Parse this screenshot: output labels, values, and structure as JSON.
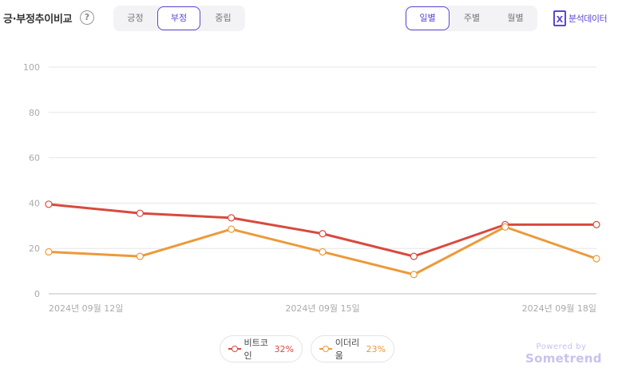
{
  "header": {
    "title": "긍·부정추이비교",
    "help_symbol": "?",
    "sentiment_tabs": [
      {
        "label": "긍정",
        "active": false
      },
      {
        "label": "부정",
        "active": true
      },
      {
        "label": "중립",
        "active": false
      }
    ],
    "period_tabs": [
      {
        "label": "일별",
        "active": true
      },
      {
        "label": "주별",
        "active": false
      },
      {
        "label": "월별",
        "active": false
      }
    ],
    "export_label": "분석데이터",
    "export_icon": "excel-icon",
    "accent_color": "#5b46d6"
  },
  "chart_data": {
    "type": "line",
    "x": [
      "2024-09-12",
      "2024-09-13",
      "2024-09-14",
      "2024-09-15",
      "2024-09-16",
      "2024-09-17",
      "2024-09-18"
    ],
    "x_tick_labels": [
      "2024년 09월 12일",
      "2024년 09월 15일",
      "2024년 09월 18일"
    ],
    "y_ticks": [
      0,
      20,
      40,
      60,
      80,
      100
    ],
    "ylim": [
      0,
      100
    ],
    "grid": true,
    "series": [
      {
        "name": "비트코인",
        "percent": "32%",
        "color": "#d9493e",
        "values": [
          39.5,
          35.5,
          33.5,
          26.5,
          16.5,
          30.5,
          30.5
        ]
      },
      {
        "name": "이더리움",
        "percent": "23%",
        "color": "#ec9a3a",
        "values": [
          18.5,
          16.5,
          28.5,
          18.5,
          8.5,
          29.5,
          15.5
        ]
      }
    ],
    "legend_position": "bottom-center"
  },
  "branding": {
    "powered_by": "Powered by",
    "brand": "Sometrend"
  }
}
